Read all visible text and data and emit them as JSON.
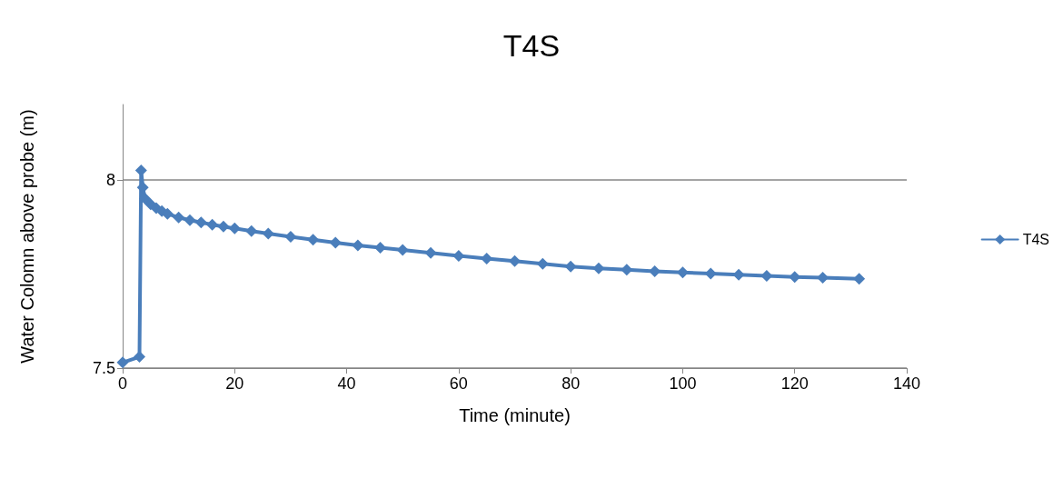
{
  "chart_data": {
    "type": "line",
    "title": "T4S",
    "xlabel": "Time (minute)",
    "ylabel": "Water Colomn above probe (m)",
    "xlim": [
      0,
      140
    ],
    "xticks": [
      0,
      20,
      40,
      60,
      80,
      100,
      120,
      140
    ],
    "ylim": [
      7.5,
      8.2
    ],
    "yticks": [
      7.5,
      8
    ],
    "grid": "y",
    "legend": "right",
    "marker": "diamond",
    "line_style": "solid",
    "series": [
      {
        "name": "T4S",
        "color": "#4a7ebb",
        "x": [
          0,
          3,
          3.3,
          3.6,
          4,
          5,
          6,
          7,
          8,
          10,
          12,
          14,
          16,
          18,
          20,
          23,
          26,
          30,
          34,
          38,
          42,
          46,
          50,
          55,
          60,
          65,
          70,
          75,
          80,
          85,
          90,
          95,
          100,
          105,
          110,
          115,
          120,
          125,
          131.5
        ],
        "values": [
          7.515,
          7.53,
          8.025,
          7.98,
          7.95,
          7.935,
          7.925,
          7.917,
          7.91,
          7.9,
          7.893,
          7.887,
          7.881,
          7.876,
          7.871,
          7.864,
          7.857,
          7.849,
          7.841,
          7.833,
          7.826,
          7.82,
          7.814,
          7.806,
          7.798,
          7.791,
          7.784,
          7.777,
          7.77,
          7.765,
          7.761,
          7.757,
          7.754,
          7.751,
          7.748,
          7.745,
          7.742,
          7.74,
          7.737
        ]
      }
    ]
  }
}
